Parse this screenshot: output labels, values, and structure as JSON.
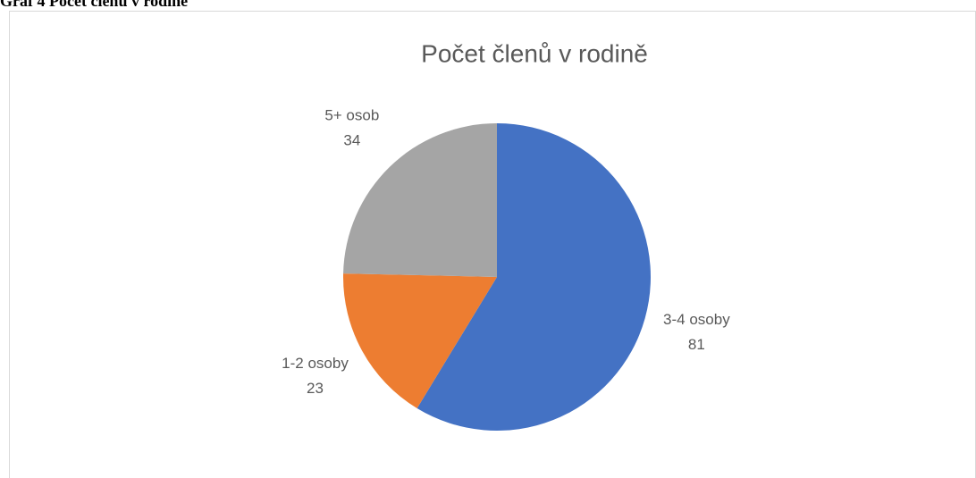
{
  "caption": "Graf 4 Počet členů v rodině",
  "chart_data": {
    "type": "pie",
    "title": "Počet členů v rodině",
    "categories": [
      "3-4 osoby",
      "1-2 osoby",
      "5+ osob"
    ],
    "values": [
      81,
      23,
      34
    ],
    "colors": [
      "#4472c4",
      "#ed7d31",
      "#a5a5a5"
    ]
  }
}
